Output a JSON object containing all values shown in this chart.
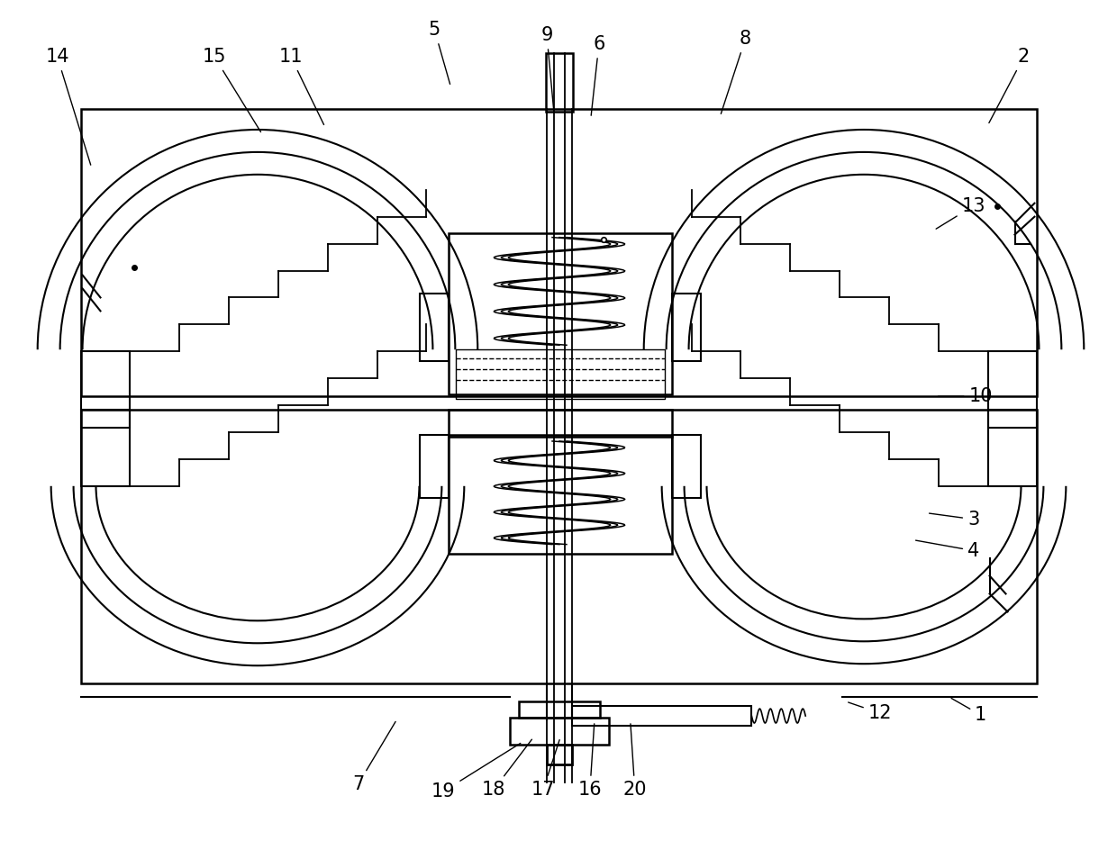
{
  "bg_color": "#ffffff",
  "fig_width": 12.4,
  "fig_height": 9.44,
  "dpi": 100
}
